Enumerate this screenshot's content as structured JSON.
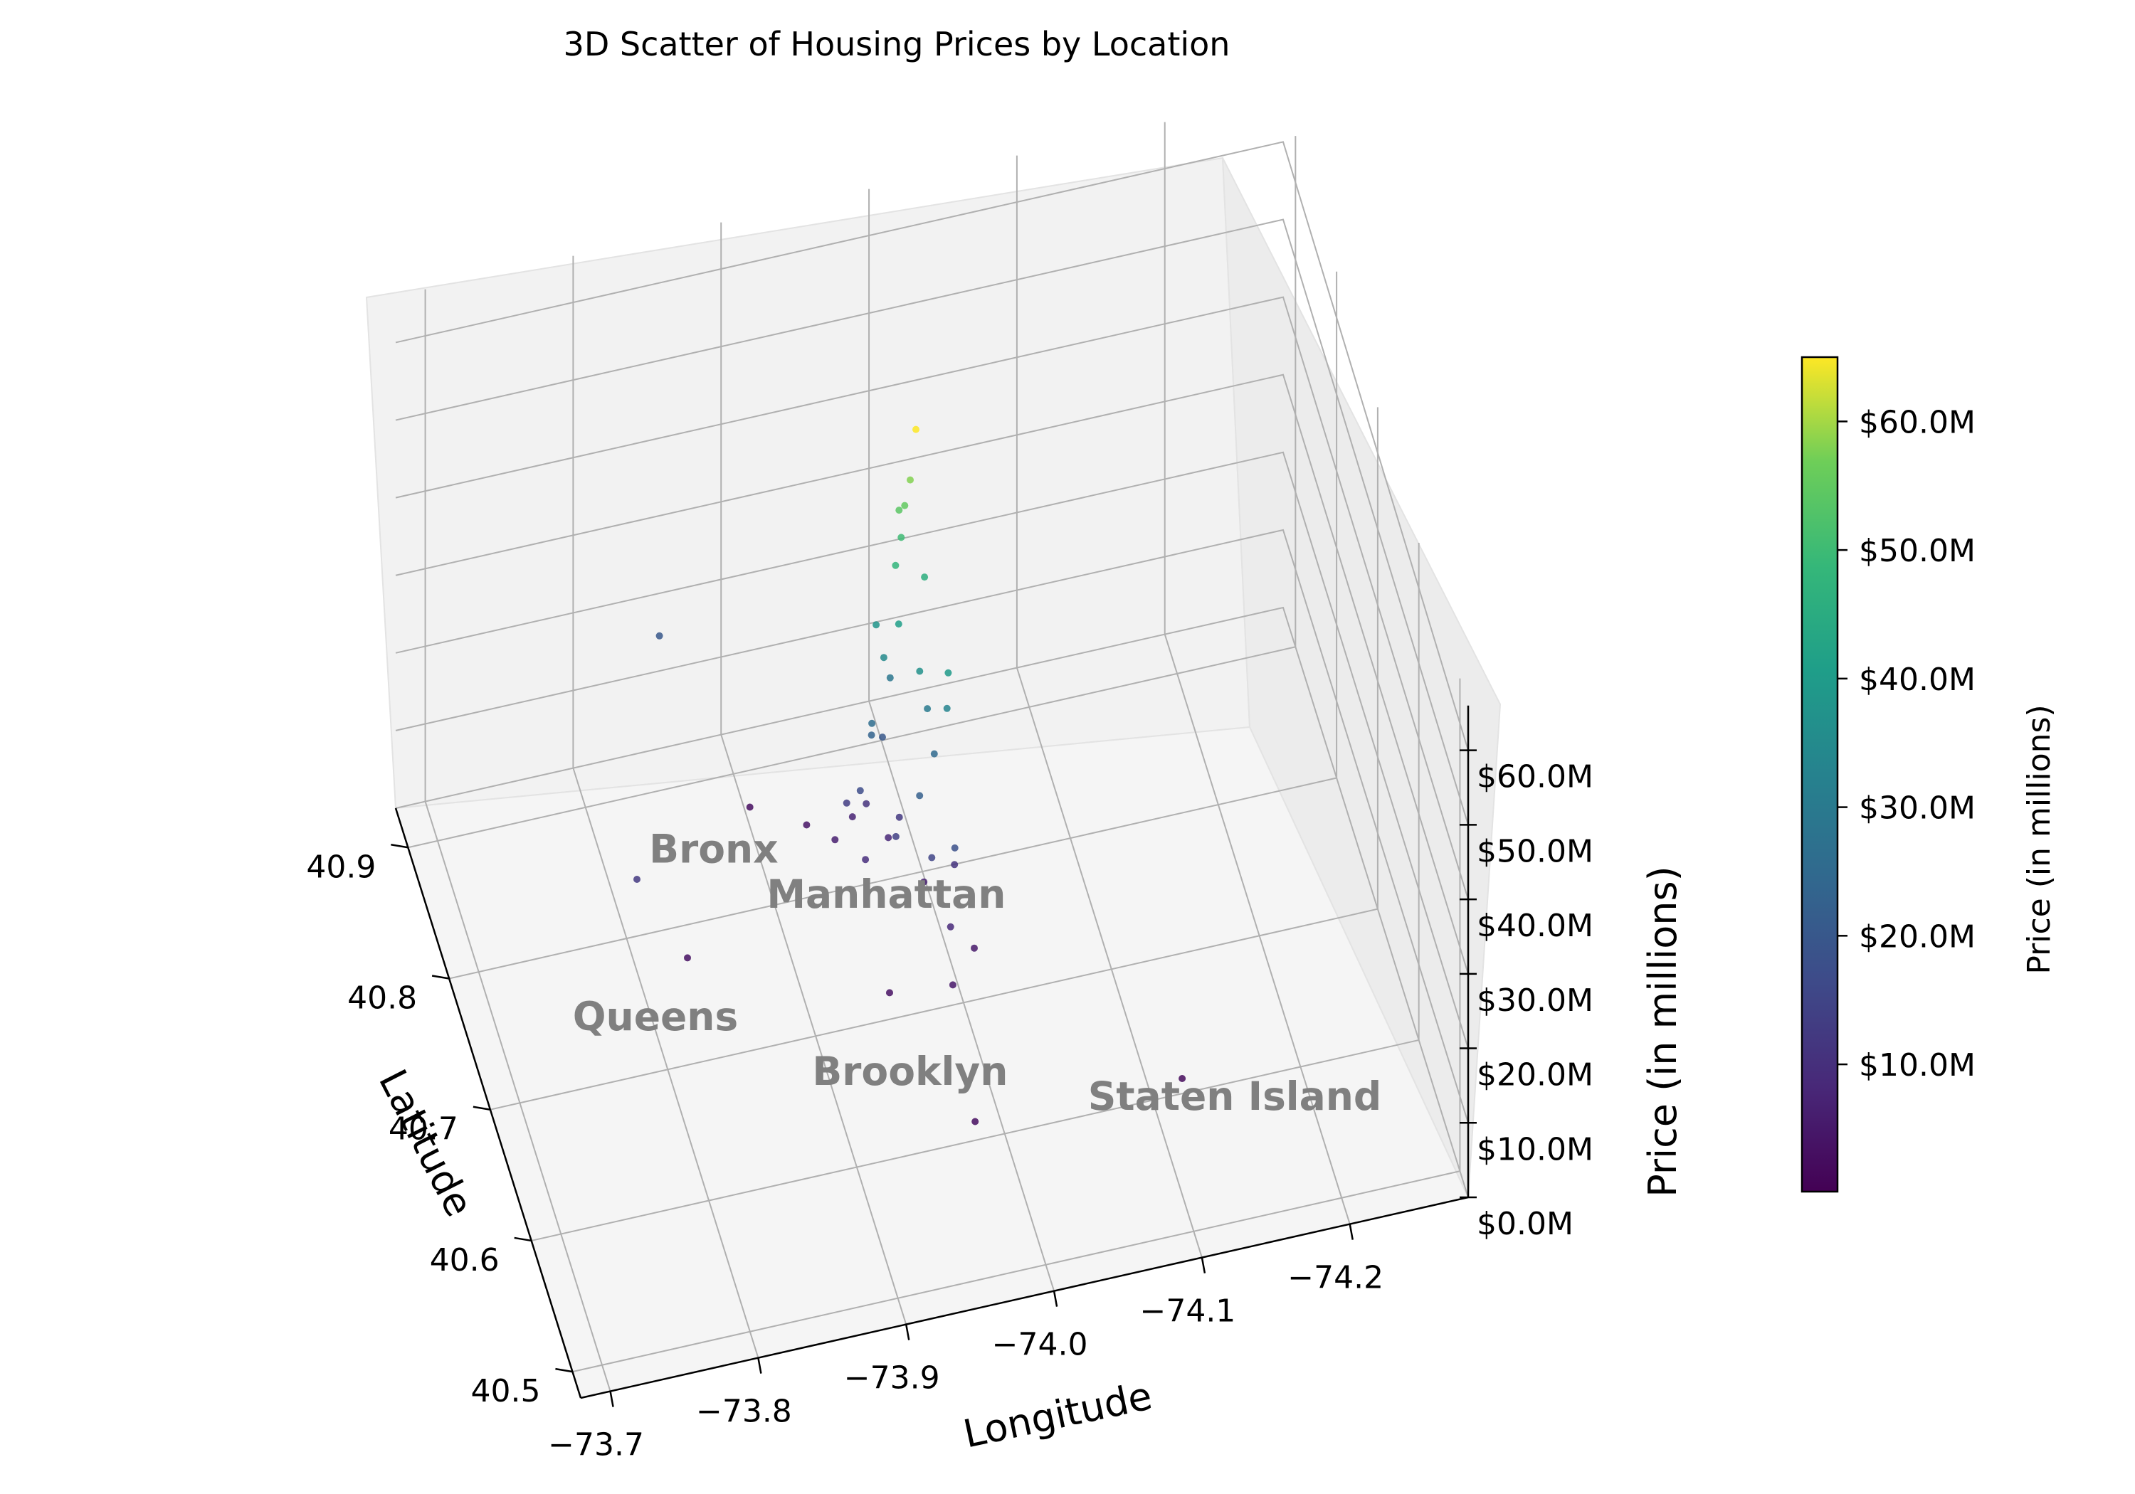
{
  "chart_data": {
    "type": "scatter",
    "projection": "3d",
    "title": "3D Scatter of Housing Prices by Location",
    "xlabel": "Longitude",
    "ylabel": "Latitude",
    "zlabel": "Price (in millions)",
    "colorbar_label": "Price (in millions)",
    "colormap": "viridis",
    "color_range": [
      0.1,
      65
    ],
    "xlim": [
      -73.68,
      -74.28
    ],
    "ylim": [
      40.48,
      40.93
    ],
    "zlim": [
      0,
      66
    ],
    "grid": true,
    "x_ticks": [
      {
        "value": -73.7,
        "label": "−73.7"
      },
      {
        "value": -73.8,
        "label": "−73.8"
      },
      {
        "value": -73.9,
        "label": "−73.9"
      },
      {
        "value": -74.0,
        "label": "−74.0"
      },
      {
        "value": -74.1,
        "label": "−74.1"
      },
      {
        "value": -74.2,
        "label": "−74.2"
      }
    ],
    "y_ticks": [
      {
        "value": 40.5,
        "label": "40.5"
      },
      {
        "value": 40.6,
        "label": "40.6"
      },
      {
        "value": 40.7,
        "label": "40.7"
      },
      {
        "value": 40.8,
        "label": "40.8"
      },
      {
        "value": 40.9,
        "label": "40.9"
      }
    ],
    "z_ticks": [
      {
        "value": 0,
        "label": "$0.0M"
      },
      {
        "value": 10,
        "label": "$10.0M"
      },
      {
        "value": 20,
        "label": "$20.0M"
      },
      {
        "value": 30,
        "label": "$30.0M"
      },
      {
        "value": 40,
        "label": "$40.0M"
      },
      {
        "value": 50,
        "label": "$50.0M"
      },
      {
        "value": 60,
        "label": "$60.0M"
      }
    ],
    "colorbar_ticks": [
      {
        "value": 10,
        "label": "$10.0M"
      },
      {
        "value": 20,
        "label": "$20.0M"
      },
      {
        "value": 30,
        "label": "$30.0M"
      },
      {
        "value": 40,
        "label": "$40.0M"
      },
      {
        "value": 50,
        "label": "$50.0M"
      },
      {
        "value": 60,
        "label": "$60.0M"
      }
    ],
    "annotations": [
      {
        "text": "Bronx",
        "lon": -73.87,
        "lat": 40.84
      },
      {
        "text": "Manhattan",
        "lon": -73.97,
        "lat": 40.78
      },
      {
        "text": "Queens",
        "lon": -73.8,
        "lat": 40.73
      },
      {
        "text": "Brooklyn",
        "lon": -73.95,
        "lat": 40.65
      },
      {
        "text": "Staten Island",
        "lon": -74.15,
        "lat": 40.58
      }
    ],
    "series": [
      {
        "points": [
          [
            -73.985,
            40.762,
            65.0
          ],
          [
            -73.982,
            40.765,
            58.0
          ],
          [
            -73.978,
            40.764,
            55.0
          ],
          [
            -73.975,
            40.767,
            54.0
          ],
          [
            -73.977,
            40.769,
            50.0
          ],
          [
            -73.971,
            40.761,
            48.0
          ],
          [
            -73.99,
            40.759,
            46.0
          ],
          [
            -73.972,
            40.757,
            41.0
          ],
          [
            -73.996,
            40.723,
            39.5
          ],
          [
            -73.962,
            40.776,
            38.0
          ],
          [
            -73.982,
            40.742,
            37.0
          ],
          [
            -73.965,
            40.768,
            35.0
          ],
          [
            -73.998,
            40.733,
            33.0
          ],
          [
            -73.99,
            40.752,
            30.0
          ],
          [
            -73.974,
            40.785,
            29.0
          ],
          [
            -73.958,
            40.772,
            26.0
          ],
          [
            -73.993,
            40.746,
            25.0
          ],
          [
            -73.96,
            40.78,
            23.0
          ],
          [
            -73.98,
            40.735,
            22.0
          ],
          [
            -73.971,
            40.793,
            20.0
          ],
          [
            -73.998,
            40.714,
            18.0
          ],
          [
            -73.951,
            40.775,
            17.0
          ],
          [
            -73.986,
            40.727,
            15.0
          ],
          [
            -73.969,
            40.753,
            14.0
          ],
          [
            -73.946,
            40.79,
            13.0
          ],
          [
            -73.978,
            40.777,
            12.0
          ],
          [
            -74.005,
            40.74,
            11.0
          ],
          [
            -73.962,
            40.8,
            10.5
          ],
          [
            -73.952,
            40.766,
            9.5
          ],
          [
            -73.994,
            40.71,
            8.5
          ],
          [
            -73.973,
            40.786,
            8.0
          ],
          [
            -73.956,
            40.812,
            7.0
          ],
          [
            -73.989,
            40.757,
            6.5
          ],
          [
            -73.942,
            40.804,
            6.0
          ],
          [
            -73.8,
            40.775,
            12.0
          ],
          [
            -73.85,
            40.9,
            20.0
          ],
          [
            -73.93,
            40.83,
            4.0
          ],
          [
            -73.99,
            40.69,
            4.5
          ],
          [
            -74.01,
            40.71,
            5.0
          ],
          [
            -73.83,
            40.76,
            3.0
          ],
          [
            -73.95,
            40.7,
            3.5
          ],
          [
            -73.98,
            40.6,
            2.5
          ],
          [
            -74.12,
            40.6,
            2.0
          ],
          [
            -73.9,
            40.86,
            2.5
          ]
        ]
      }
    ]
  }
}
